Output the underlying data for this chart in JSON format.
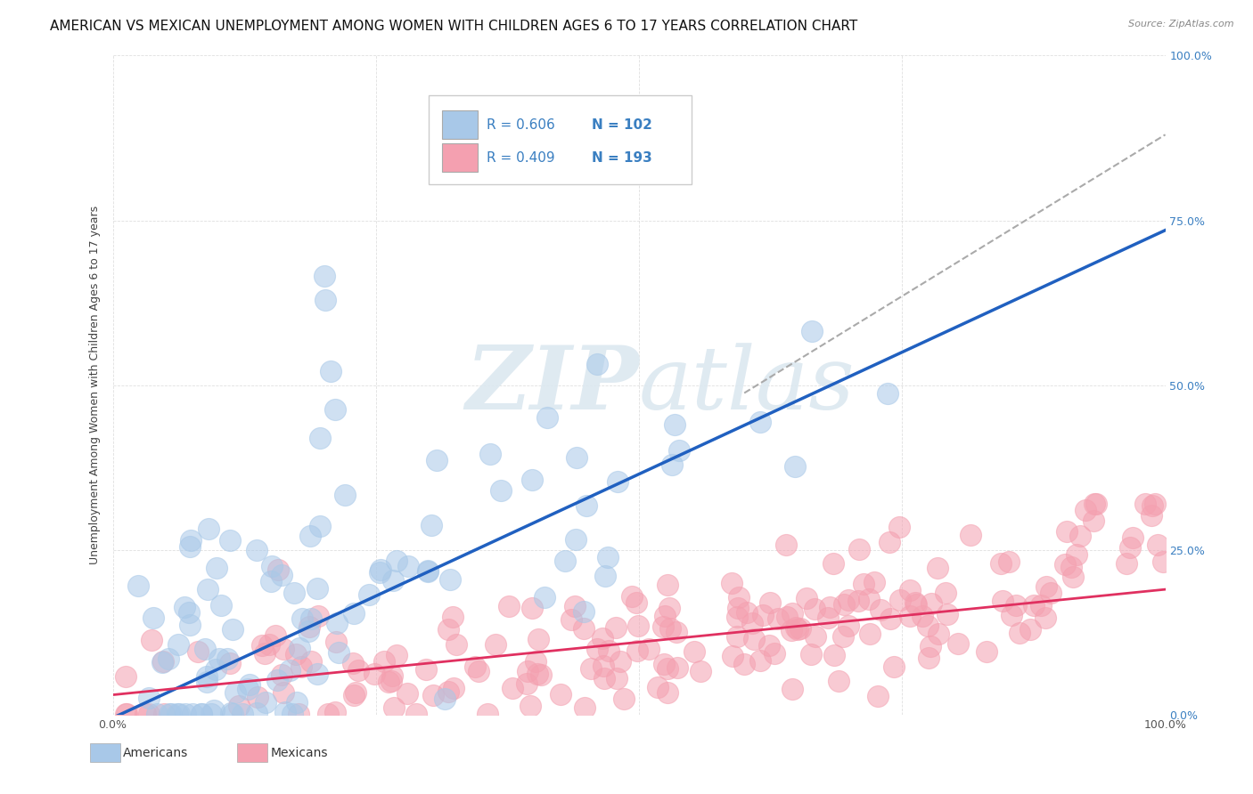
{
  "title": "AMERICAN VS MEXICAN UNEMPLOYMENT AMONG WOMEN WITH CHILDREN AGES 6 TO 17 YEARS CORRELATION CHART",
  "source": "Source: ZipAtlas.com",
  "ylabel": "Unemployment Among Women with Children Ages 6 to 17 years",
  "xlim": [
    0,
    1
  ],
  "ylim": [
    0,
    1
  ],
  "x_ticks": [
    0,
    0.25,
    0.5,
    0.75,
    1.0
  ],
  "y_ticks": [
    0,
    0.25,
    0.5,
    0.75,
    1.0
  ],
  "x_tick_labels_bottom": [
    "0.0%",
    "",
    "",
    "",
    "100.0%"
  ],
  "y_tick_labels_left": [
    "",
    "",
    "",
    "",
    ""
  ],
  "y_tick_labels_right_blue": [
    "0.0%",
    "25.0%",
    "50.0%",
    "75.0%",
    "100.0%"
  ],
  "americans_color": "#a8c8e8",
  "mexicans_color": "#f4a0b0",
  "americans_line_color": "#2060c0",
  "mexicans_line_color": "#e03060",
  "dashed_line_color": "#aaaaaa",
  "watermark_color": "#dce8f0",
  "R_american": 0.606,
  "N_american": 102,
  "R_mexican": 0.409,
  "N_mexican": 193,
  "american_slope": 0.74,
  "american_intercept": -0.005,
  "mexican_slope": 0.16,
  "mexican_intercept": 0.03,
  "background_color": "#ffffff",
  "grid_color": "#d8d8d8",
  "title_fontsize": 11,
  "label_fontsize": 9,
  "tick_fontsize": 9,
  "legend_color": "#3a7fc1",
  "legend_R_text_american": "R = 0.606",
  "legend_N_text_american": "N = 102",
  "legend_R_text_mexican": "R = 0.409",
  "legend_N_text_mexican": "N = 193"
}
